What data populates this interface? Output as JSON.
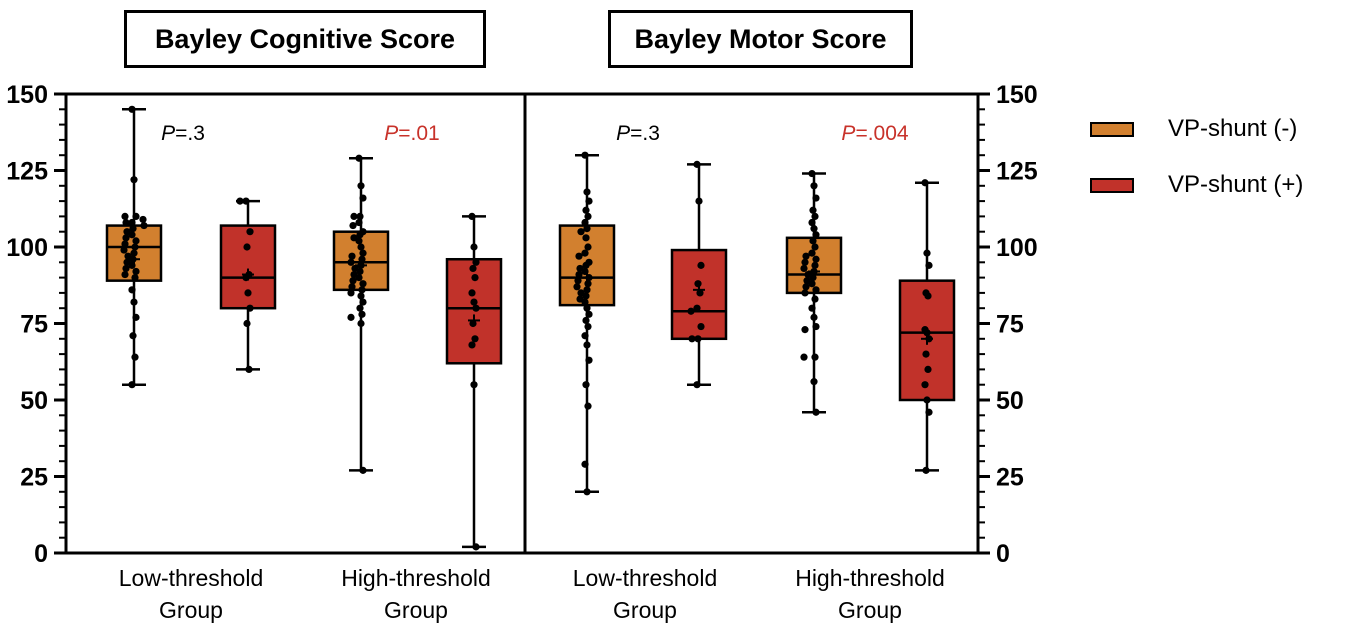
{
  "colors": {
    "shunt_neg": "#D2802F",
    "shunt_pos": "#C1322A",
    "pvalue_black": "#000000",
    "pvalue_red": "#C8322A"
  },
  "legend": [
    {
      "label": "VP-shunt (-)",
      "color": "#D2802F"
    },
    {
      "label": "VP-shunt (+)",
      "color": "#C1322A"
    }
  ],
  "chart_data": [
    {
      "type": "box",
      "title": "Bayley Cognitive Score",
      "ylim": [
        0,
        150
      ],
      "yticks": [
        0,
        25,
        50,
        75,
        100,
        125,
        150
      ],
      "y_axis_side": "left",
      "groups": [
        {
          "label_lines": [
            "Low-threshold",
            "Group"
          ],
          "pvalue_prefix": "P",
          "pvalue_suffix": "=.3",
          "pvalue_color": "#000000",
          "boxes": [
            {
              "series": "VP-shunt (-)",
              "min": 55,
              "q1": 89,
              "median": 100,
              "q3": 107,
              "max": 145,
              "mean": 96,
              "points": [
                145,
                122,
                110,
                110,
                109,
                108,
                108,
                107,
                106,
                105,
                104,
                103,
                102,
                101,
                100,
                99,
                98,
                97,
                96,
                95,
                94,
                93,
                92,
                91,
                90,
                86,
                82,
                77,
                71,
                64,
                55
              ]
            },
            {
              "series": "VP-shunt (+)",
              "min": 60,
              "q1": 80,
              "median": 90,
              "q3": 107,
              "max": 115,
              "mean": 91,
              "points": [
                115,
                115,
                105,
                100,
                91,
                90,
                85,
                80,
                75,
                60
              ]
            }
          ]
        },
        {
          "label_lines": [
            "High-threshold",
            "Group"
          ],
          "pvalue_prefix": "P",
          "pvalue_suffix": "=.01",
          "pvalue_color": "#C8322A",
          "boxes": [
            {
              "series": "VP-shunt (-)",
              "min": 27,
              "q1": 86,
              "median": 95,
              "q3": 105,
              "max": 129,
              "mean": 94,
              "points": [
                129,
                120,
                116,
                110,
                110,
                108,
                107,
                105,
                104,
                103,
                102,
                100,
                98,
                97,
                96,
                95,
                94,
                93,
                92,
                91,
                90,
                89,
                88,
                87,
                86,
                85,
                84,
                82,
                80,
                78,
                77,
                75,
                27
              ]
            },
            {
              "series": "VP-shunt (+)",
              "min": 2,
              "q1": 62,
              "median": 80,
              "q3": 96,
              "max": 110,
              "mean": 76,
              "points": [
                110,
                100,
                95,
                93,
                90,
                85,
                82,
                80,
                75,
                70,
                68,
                55,
                2
              ]
            }
          ]
        }
      ]
    },
    {
      "type": "box",
      "title": "Bayley Motor Score",
      "ylim": [
        0,
        150
      ],
      "yticks": [
        0,
        25,
        50,
        75,
        100,
        125,
        150
      ],
      "y_axis_side": "right",
      "groups": [
        {
          "label_lines": [
            "Low-threshold",
            "Group"
          ],
          "pvalue_prefix": "P",
          "pvalue_suffix": "=.3",
          "pvalue_color": "#000000",
          "boxes": [
            {
              "series": "VP-shunt (-)",
              "min": 20,
              "q1": 81,
              "median": 90,
              "q3": 107,
              "max": 130,
              "mean": 90,
              "points": [
                130,
                118,
                115,
                112,
                110,
                108,
                106,
                105,
                103,
                100,
                98,
                97,
                95,
                94,
                93,
                92,
                91,
                90,
                89,
                88,
                87,
                86,
                85,
                84,
                83,
                82,
                80,
                78,
                76,
                74,
                71,
                68,
                63,
                55,
                48,
                29,
                20
              ]
            },
            {
              "series": "VP-shunt (+)",
              "min": 55,
              "q1": 70,
              "median": 79,
              "q3": 99,
              "max": 127,
              "mean": 86,
              "points": [
                127,
                115,
                94,
                88,
                85,
                80,
                79,
                74,
                70,
                70,
                55
              ]
            }
          ]
        },
        {
          "label_lines": [
            "High-threshold",
            "Group"
          ],
          "pvalue_prefix": "P",
          "pvalue_suffix": "=.004",
          "pvalue_color": "#C8322A",
          "boxes": [
            {
              "series": "VP-shunt (-)",
              "min": 46,
              "q1": 85,
              "median": 91,
              "q3": 103,
              "max": 124,
              "mean": 92,
              "points": [
                124,
                120,
                116,
                112,
                110,
                108,
                106,
                104,
                102,
                100,
                98,
                97,
                96,
                95,
                94,
                93,
                92,
                91,
                90,
                89,
                88,
                87,
                86,
                85,
                83,
                80,
                77,
                74,
                73,
                64,
                64,
                56,
                46
              ]
            },
            {
              "series": "VP-shunt (+)",
              "min": 27,
              "q1": 50,
              "median": 72,
              "q3": 89,
              "max": 121,
              "mean": 70,
              "points": [
                121,
                98,
                94,
                85,
                84,
                73,
                72,
                70,
                65,
                60,
                55,
                50,
                46,
                27
              ]
            }
          ]
        }
      ]
    }
  ]
}
